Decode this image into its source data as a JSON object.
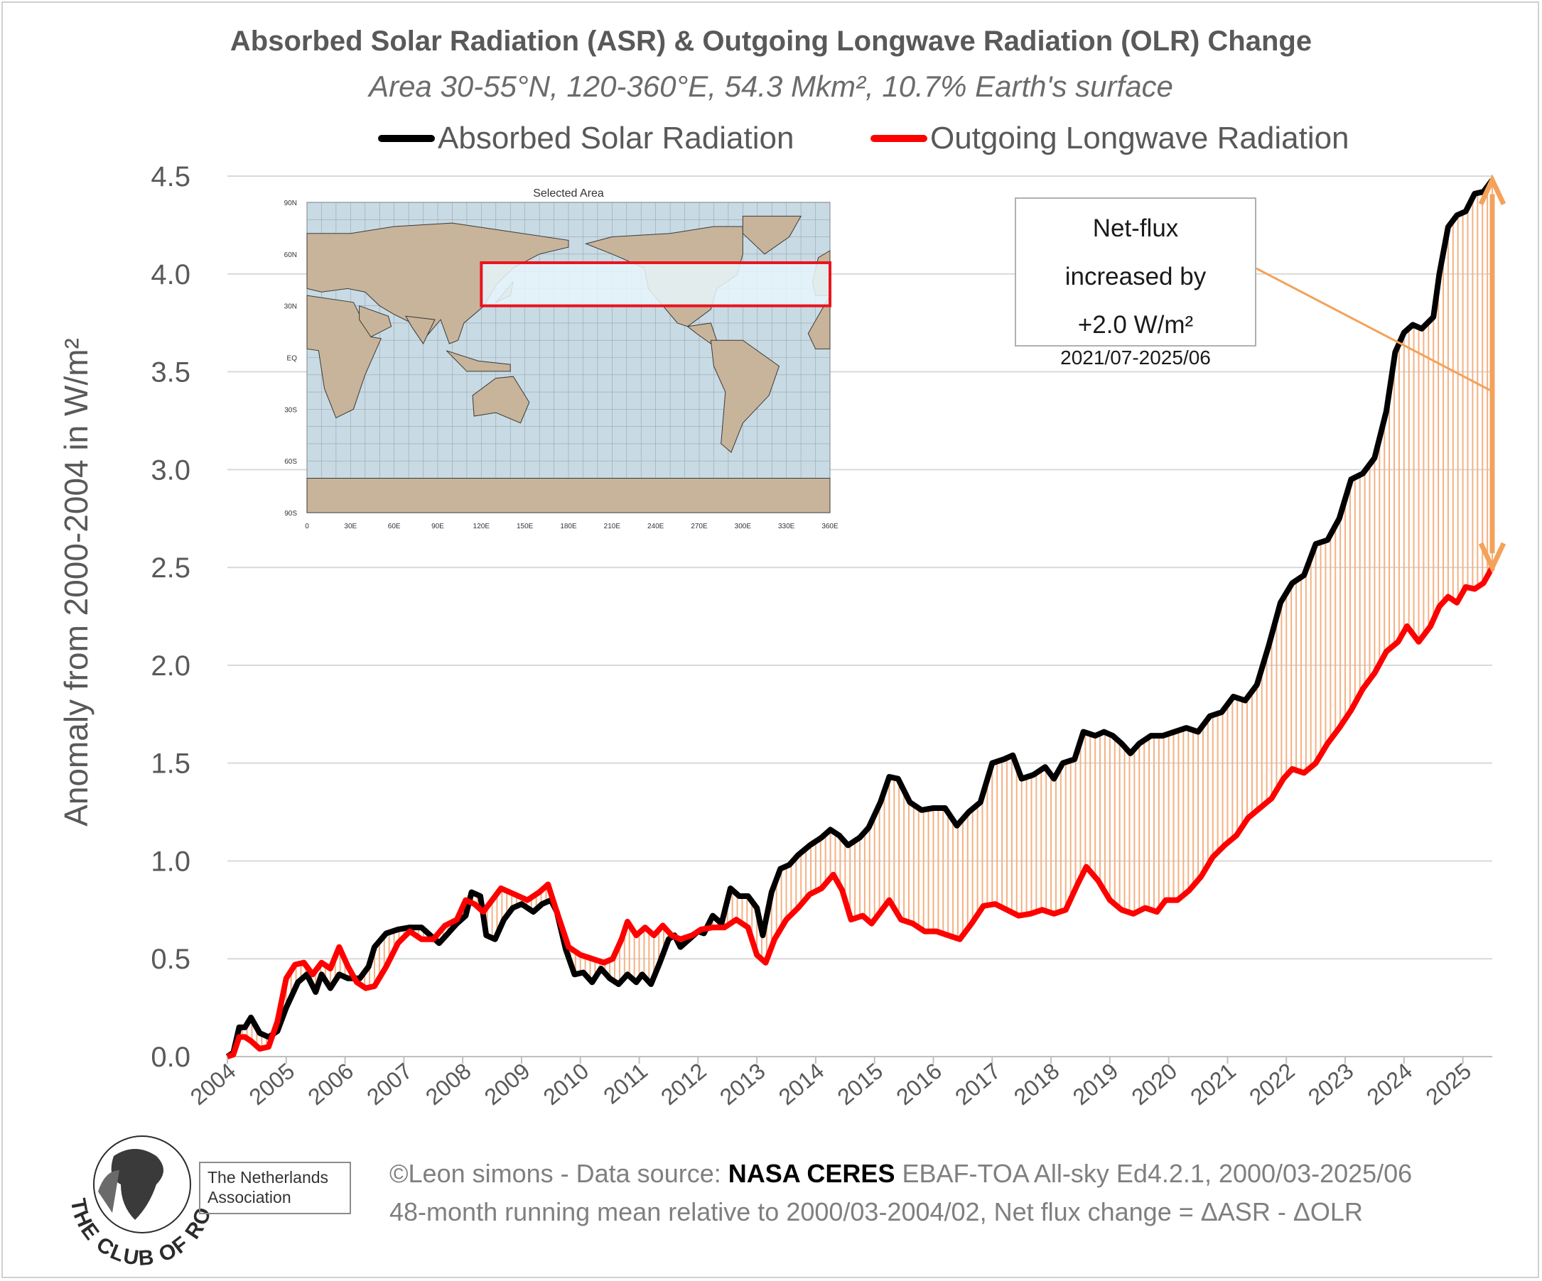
{
  "chart_data": {
    "type": "line",
    "title": "Absorbed Solar Radiation (ASR) & Outgoing Longwave Radiation (OLR) Change",
    "subtitle": "Area 30-55°N, 120-360°E, 54.3 Mkm², 10.7% Earth's surface",
    "xlabel": "",
    "ylabel": "Anomaly from 2000-2004 in W/m²",
    "xlim": [
      2004.0,
      2025.5
    ],
    "ylim": [
      0,
      4.5
    ],
    "x_ticks": [
      "2004",
      "2005",
      "2006",
      "2007",
      "2008",
      "2009",
      "2010",
      "2011",
      "2012",
      "2013",
      "2014",
      "2015",
      "2016",
      "2017",
      "2018",
      "2019",
      "2020",
      "2021",
      "2022",
      "2023",
      "2024",
      "2025"
    ],
    "y_ticks": [
      "0.0",
      "0.5",
      "1.0",
      "1.5",
      "2.0",
      "2.5",
      "3.0",
      "3.5",
      "4.0",
      "4.5"
    ],
    "grid": "horizontal",
    "legend_position": "top",
    "colors": {
      "asr": "#000000",
      "olr": "#ff0000",
      "fill": "#f4b183",
      "arrow": "#f4a25a"
    },
    "series": [
      {
        "name": "Absorbed Solar Radiation",
        "key": "asr",
        "points": [
          [
            2004.0,
            0.0
          ],
          [
            2004.1,
            0.02
          ],
          [
            2004.2,
            0.15
          ],
          [
            2004.3,
            0.15
          ],
          [
            2004.4,
            0.2
          ],
          [
            2004.55,
            0.12
          ],
          [
            2004.7,
            0.1
          ],
          [
            2004.85,
            0.13
          ],
          [
            2005.0,
            0.25
          ],
          [
            2005.2,
            0.38
          ],
          [
            2005.35,
            0.42
          ],
          [
            2005.5,
            0.33
          ],
          [
            2005.6,
            0.42
          ],
          [
            2005.75,
            0.35
          ],
          [
            2005.9,
            0.42
          ],
          [
            2006.05,
            0.4
          ],
          [
            2006.25,
            0.4
          ],
          [
            2006.4,
            0.46
          ],
          [
            2006.5,
            0.56
          ],
          [
            2006.7,
            0.63
          ],
          [
            2006.9,
            0.65
          ],
          [
            2007.1,
            0.66
          ],
          [
            2007.3,
            0.66
          ],
          [
            2007.45,
            0.62
          ],
          [
            2007.6,
            0.58
          ],
          [
            2007.75,
            0.63
          ],
          [
            2007.9,
            0.68
          ],
          [
            2008.05,
            0.72
          ],
          [
            2008.15,
            0.84
          ],
          [
            2008.3,
            0.82
          ],
          [
            2008.4,
            0.62
          ],
          [
            2008.55,
            0.6
          ],
          [
            2008.7,
            0.7
          ],
          [
            2008.85,
            0.76
          ],
          [
            2009.0,
            0.78
          ],
          [
            2009.2,
            0.74
          ],
          [
            2009.35,
            0.78
          ],
          [
            2009.5,
            0.8
          ],
          [
            2009.6,
            0.74
          ],
          [
            2009.75,
            0.55
          ],
          [
            2009.9,
            0.42
          ],
          [
            2010.05,
            0.43
          ],
          [
            2010.2,
            0.38
          ],
          [
            2010.35,
            0.45
          ],
          [
            2010.5,
            0.4
          ],
          [
            2010.65,
            0.37
          ],
          [
            2010.8,
            0.42
          ],
          [
            2010.95,
            0.38
          ],
          [
            2011.05,
            0.42
          ],
          [
            2011.2,
            0.37
          ],
          [
            2011.35,
            0.48
          ],
          [
            2011.5,
            0.6
          ],
          [
            2011.6,
            0.62
          ],
          [
            2011.7,
            0.56
          ],
          [
            2011.85,
            0.6
          ],
          [
            2012.0,
            0.64
          ],
          [
            2012.1,
            0.63
          ],
          [
            2012.25,
            0.72
          ],
          [
            2012.4,
            0.68
          ],
          [
            2012.55,
            0.86
          ],
          [
            2012.7,
            0.82
          ],
          [
            2012.85,
            0.82
          ],
          [
            2013.0,
            0.76
          ],
          [
            2013.1,
            0.62
          ],
          [
            2013.25,
            0.84
          ],
          [
            2013.4,
            0.96
          ],
          [
            2013.55,
            0.98
          ],
          [
            2013.7,
            1.03
          ],
          [
            2013.9,
            1.08
          ],
          [
            2014.1,
            1.12
          ],
          [
            2014.25,
            1.16
          ],
          [
            2014.4,
            1.13
          ],
          [
            2014.55,
            1.08
          ],
          [
            2014.75,
            1.12
          ],
          [
            2014.9,
            1.17
          ],
          [
            2015.1,
            1.3
          ],
          [
            2015.25,
            1.43
          ],
          [
            2015.4,
            1.42
          ],
          [
            2015.6,
            1.3
          ],
          [
            2015.8,
            1.26
          ],
          [
            2016.0,
            1.27
          ],
          [
            2016.2,
            1.27
          ],
          [
            2016.4,
            1.18
          ],
          [
            2016.6,
            1.25
          ],
          [
            2016.8,
            1.3
          ],
          [
            2017.0,
            1.5
          ],
          [
            2017.2,
            1.52
          ],
          [
            2017.35,
            1.54
          ],
          [
            2017.5,
            1.42
          ],
          [
            2017.7,
            1.44
          ],
          [
            2017.9,
            1.48
          ],
          [
            2018.05,
            1.42
          ],
          [
            2018.2,
            1.5
          ],
          [
            2018.4,
            1.52
          ],
          [
            2018.55,
            1.66
          ],
          [
            2018.75,
            1.64
          ],
          [
            2018.9,
            1.66
          ],
          [
            2019.05,
            1.64
          ],
          [
            2019.2,
            1.6
          ],
          [
            2019.35,
            1.55
          ],
          [
            2019.5,
            1.6
          ],
          [
            2019.7,
            1.64
          ],
          [
            2019.9,
            1.64
          ],
          [
            2020.1,
            1.66
          ],
          [
            2020.3,
            1.68
          ],
          [
            2020.5,
            1.66
          ],
          [
            2020.7,
            1.74
          ],
          [
            2020.9,
            1.76
          ],
          [
            2021.1,
            1.84
          ],
          [
            2021.3,
            1.82
          ],
          [
            2021.5,
            1.9
          ],
          [
            2021.7,
            2.1
          ],
          [
            2021.9,
            2.32
          ],
          [
            2022.1,
            2.42
          ],
          [
            2022.3,
            2.46
          ],
          [
            2022.5,
            2.62
          ],
          [
            2022.7,
            2.64
          ],
          [
            2022.9,
            2.75
          ],
          [
            2023.1,
            2.95
          ],
          [
            2023.3,
            2.98
          ],
          [
            2023.5,
            3.06
          ],
          [
            2023.7,
            3.3
          ],
          [
            2023.85,
            3.6
          ],
          [
            2024.0,
            3.7
          ],
          [
            2024.15,
            3.74
          ],
          [
            2024.3,
            3.72
          ],
          [
            2024.5,
            3.78
          ],
          [
            2024.6,
            4.0
          ],
          [
            2024.75,
            4.24
          ],
          [
            2024.9,
            4.3
          ],
          [
            2025.05,
            4.32
          ],
          [
            2025.2,
            4.41
          ],
          [
            2025.35,
            4.42
          ],
          [
            2025.5,
            4.48
          ]
        ]
      },
      {
        "name": "Outgoing Longwave Radiation",
        "key": "olr",
        "points": [
          [
            2004.0,
            0.0
          ],
          [
            2004.1,
            0.01
          ],
          [
            2004.2,
            0.1
          ],
          [
            2004.3,
            0.1
          ],
          [
            2004.4,
            0.08
          ],
          [
            2004.55,
            0.04
          ],
          [
            2004.7,
            0.05
          ],
          [
            2004.85,
            0.18
          ],
          [
            2005.0,
            0.4
          ],
          [
            2005.15,
            0.47
          ],
          [
            2005.3,
            0.48
          ],
          [
            2005.45,
            0.42
          ],
          [
            2005.6,
            0.48
          ],
          [
            2005.75,
            0.45
          ],
          [
            2005.9,
            0.56
          ],
          [
            2006.05,
            0.46
          ],
          [
            2006.2,
            0.38
          ],
          [
            2006.35,
            0.35
          ],
          [
            2006.5,
            0.36
          ],
          [
            2006.7,
            0.46
          ],
          [
            2006.9,
            0.58
          ],
          [
            2007.1,
            0.64
          ],
          [
            2007.3,
            0.6
          ],
          [
            2007.5,
            0.6
          ],
          [
            2007.7,
            0.67
          ],
          [
            2007.9,
            0.7
          ],
          [
            2008.05,
            0.8
          ],
          [
            2008.2,
            0.78
          ],
          [
            2008.35,
            0.74
          ],
          [
            2008.5,
            0.8
          ],
          [
            2008.65,
            0.86
          ],
          [
            2008.8,
            0.84
          ],
          [
            2008.95,
            0.82
          ],
          [
            2009.1,
            0.8
          ],
          [
            2009.3,
            0.84
          ],
          [
            2009.45,
            0.88
          ],
          [
            2009.6,
            0.74
          ],
          [
            2009.8,
            0.56
          ],
          [
            2010.0,
            0.52
          ],
          [
            2010.2,
            0.5
          ],
          [
            2010.4,
            0.48
          ],
          [
            2010.55,
            0.5
          ],
          [
            2010.7,
            0.6
          ],
          [
            2010.8,
            0.69
          ],
          [
            2010.95,
            0.62
          ],
          [
            2011.1,
            0.66
          ],
          [
            2011.25,
            0.62
          ],
          [
            2011.4,
            0.67
          ],
          [
            2011.55,
            0.62
          ],
          [
            2011.7,
            0.6
          ],
          [
            2011.9,
            0.62
          ],
          [
            2012.05,
            0.65
          ],
          [
            2012.25,
            0.66
          ],
          [
            2012.45,
            0.66
          ],
          [
            2012.65,
            0.7
          ],
          [
            2012.85,
            0.66
          ],
          [
            2013.0,
            0.52
          ],
          [
            2013.15,
            0.48
          ],
          [
            2013.3,
            0.6
          ],
          [
            2013.5,
            0.7
          ],
          [
            2013.7,
            0.76
          ],
          [
            2013.9,
            0.83
          ],
          [
            2014.1,
            0.86
          ],
          [
            2014.3,
            0.93
          ],
          [
            2014.45,
            0.85
          ],
          [
            2014.6,
            0.7
          ],
          [
            2014.8,
            0.72
          ],
          [
            2014.95,
            0.68
          ],
          [
            2015.1,
            0.74
          ],
          [
            2015.25,
            0.8
          ],
          [
            2015.45,
            0.7
          ],
          [
            2015.65,
            0.68
          ],
          [
            2015.85,
            0.64
          ],
          [
            2016.05,
            0.64
          ],
          [
            2016.25,
            0.62
          ],
          [
            2016.45,
            0.6
          ],
          [
            2016.65,
            0.68
          ],
          [
            2016.85,
            0.77
          ],
          [
            2017.05,
            0.78
          ],
          [
            2017.25,
            0.75
          ],
          [
            2017.45,
            0.72
          ],
          [
            2017.65,
            0.73
          ],
          [
            2017.85,
            0.75
          ],
          [
            2018.05,
            0.73
          ],
          [
            2018.25,
            0.75
          ],
          [
            2018.45,
            0.88
          ],
          [
            2018.6,
            0.97
          ],
          [
            2018.8,
            0.9
          ],
          [
            2019.0,
            0.8
          ],
          [
            2019.2,
            0.75
          ],
          [
            2019.4,
            0.73
          ],
          [
            2019.6,
            0.76
          ],
          [
            2019.8,
            0.74
          ],
          [
            2019.95,
            0.8
          ],
          [
            2020.15,
            0.8
          ],
          [
            2020.35,
            0.85
          ],
          [
            2020.55,
            0.92
          ],
          [
            2020.75,
            1.02
          ],
          [
            2020.95,
            1.08
          ],
          [
            2021.15,
            1.13
          ],
          [
            2021.35,
            1.22
          ],
          [
            2021.55,
            1.27
          ],
          [
            2021.75,
            1.32
          ],
          [
            2021.95,
            1.42
          ],
          [
            2022.1,
            1.47
          ],
          [
            2022.3,
            1.45
          ],
          [
            2022.5,
            1.5
          ],
          [
            2022.7,
            1.6
          ],
          [
            2022.9,
            1.68
          ],
          [
            2023.1,
            1.77
          ],
          [
            2023.3,
            1.88
          ],
          [
            2023.5,
            1.96
          ],
          [
            2023.7,
            2.07
          ],
          [
            2023.9,
            2.12
          ],
          [
            2024.05,
            2.2
          ],
          [
            2024.25,
            2.12
          ],
          [
            2024.45,
            2.2
          ],
          [
            2024.6,
            2.3
          ],
          [
            2024.75,
            2.35
          ],
          [
            2024.9,
            2.32
          ],
          [
            2025.05,
            2.4
          ],
          [
            2025.2,
            2.39
          ],
          [
            2025.35,
            2.42
          ],
          [
            2025.5,
            2.5
          ]
        ]
      }
    ],
    "annotation": {
      "lines": [
        "Net-flux",
        "increased by",
        "+2.0 W/m²",
        "2021/07-2025/06"
      ]
    },
    "inset_map": {
      "title": "Selected Area",
      "lat_labels": [
        "90N",
        "60N",
        "30N",
        "EQ",
        "30S",
        "60S",
        "90S"
      ],
      "lon_labels": [
        "0",
        "30E",
        "60E",
        "90E",
        "120E",
        "150E",
        "180E",
        "210E",
        "240E",
        "270E",
        "300E",
        "330E",
        "360E"
      ],
      "region": {
        "lat": [
          30,
          55
        ],
        "lon": [
          120,
          360
        ]
      },
      "colors": {
        "ocean": "#c8dae4",
        "land": "#c8b49a",
        "region_fill": "#e8f6fc",
        "region_border": "#e8141e"
      }
    }
  },
  "footer": {
    "line1_prefix": "©Leon simons - Data source: ",
    "line1_bold": "NASA CERES",
    "line1_suffix": " EBAF-TOA All-sky Ed4.2.1, 2000/03-2025/06",
    "line2": "48-month running mean relative to 2000/03-2004/02, Net flux change = ΔASR - ΔOLR"
  },
  "logo": {
    "ring_text": "THE CLUB OF ROME",
    "box_line1": "The Netherlands",
    "box_line2": "Association"
  }
}
